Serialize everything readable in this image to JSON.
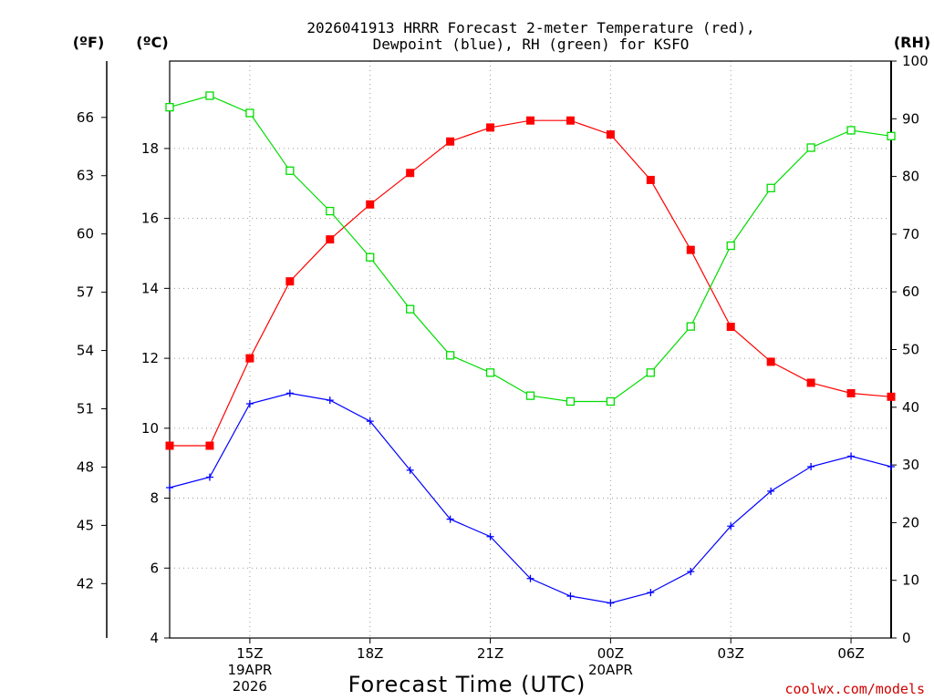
{
  "chart_data": {
    "type": "line",
    "title_lines": [
      "2026041913 HRRR Forecast 2-meter Temperature (red),",
      "Dewpoint (blue), RH (green) for KSFO"
    ],
    "xlabel": "Forecast Time (UTC)",
    "credit": "coolwx.com/models",
    "hours": [
      13,
      14,
      15,
      16,
      17,
      18,
      19,
      20,
      21,
      22,
      23,
      24,
      25,
      26,
      27,
      28,
      29,
      30,
      31
    ],
    "xlim": [
      13,
      31
    ],
    "x_ticks": [
      {
        "hour": 15,
        "lines": [
          "15Z",
          "19APR",
          "2026"
        ]
      },
      {
        "hour": 18,
        "lines": [
          "18Z"
        ]
      },
      {
        "hour": 21,
        "lines": [
          "21Z"
        ]
      },
      {
        "hour": 24,
        "lines": [
          "00Z",
          "20APR"
        ]
      },
      {
        "hour": 27,
        "lines": [
          "03Z"
        ]
      },
      {
        "hour": 30,
        "lines": [
          "06Z"
        ]
      }
    ],
    "y_left_c": {
      "unit": "(ºC)",
      "lim": [
        4,
        20.5
      ],
      "ticks": [
        4,
        6,
        8,
        10,
        12,
        14,
        16,
        18
      ]
    },
    "y_left_f": {
      "unit": "(ºF)",
      "ticks": [
        42,
        45,
        48,
        51,
        54,
        57,
        60,
        63,
        66
      ]
    },
    "y_right": {
      "unit": "(RH)",
      "lim": [
        0,
        100
      ],
      "ticks": [
        0,
        10,
        20,
        30,
        40,
        50,
        60,
        70,
        80,
        90,
        100
      ]
    },
    "series": [
      {
        "name": "Temperature",
        "axis": "c",
        "color": "#ff0000",
        "marker": "filled-square",
        "values": [
          9.5,
          9.5,
          12.0,
          14.2,
          15.4,
          16.4,
          17.3,
          18.2,
          18.6,
          18.8,
          18.8,
          18.4,
          17.1,
          15.1,
          12.9,
          11.9,
          11.3,
          11.0,
          10.9
        ]
      },
      {
        "name": "Dewpoint",
        "axis": "c",
        "color": "#0000ff",
        "marker": "plus",
        "values": [
          8.3,
          8.6,
          10.7,
          11.0,
          10.8,
          10.2,
          8.8,
          7.4,
          6.9,
          5.7,
          5.2,
          5.0,
          5.3,
          5.9,
          7.2,
          8.2,
          8.9,
          9.2,
          8.9
        ]
      },
      {
        "name": "RH",
        "axis": "rh",
        "color": "#00dd00",
        "marker": "open-square",
        "values": [
          92,
          94,
          91,
          81,
          74,
          66,
          57,
          49,
          46,
          42,
          41,
          41,
          46,
          54,
          68,
          78,
          85,
          88,
          87
        ]
      }
    ]
  }
}
